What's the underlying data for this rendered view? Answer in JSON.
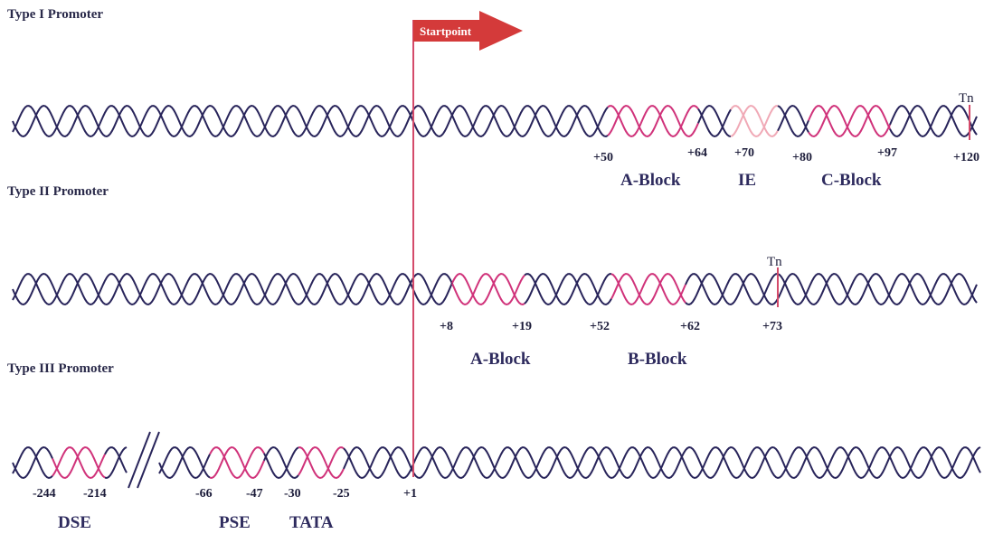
{
  "colors": {
    "strand": "#28245a",
    "element": "#d0327a",
    "element_faint": "#f0a9b6",
    "line": "#d44a6a",
    "arrow": "#d43a3a"
  },
  "startpoint": {
    "label": "Startpoint"
  },
  "rows": [
    {
      "title": "Type I Promoter",
      "tn": "Tn",
      "positions": [
        "+50",
        "+64",
        "+70",
        "+80",
        "+97",
        "+120"
      ],
      "elements": [
        "A-Block",
        "IE",
        "C-Block"
      ]
    },
    {
      "title": "Type II Promoter",
      "tn": "Tn",
      "positions": [
        "+8",
        "+19",
        "+52",
        "+62",
        "+73"
      ],
      "elements": [
        "A-Block",
        "B-Block"
      ]
    },
    {
      "title": "Type III Promoter",
      "positions": [
        "-244",
        "-214",
        "-66",
        "-47",
        "-30",
        "-25",
        "+1"
      ],
      "elements": [
        "DSE",
        "PSE",
        "TATA"
      ]
    }
  ]
}
